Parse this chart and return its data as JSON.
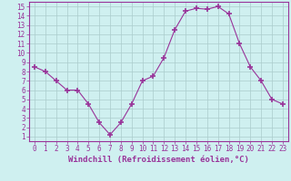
{
  "x": [
    0,
    1,
    2,
    3,
    4,
    5,
    6,
    7,
    8,
    9,
    10,
    11,
    12,
    13,
    14,
    15,
    16,
    17,
    18,
    19,
    20,
    21,
    22,
    23
  ],
  "y": [
    8.5,
    8.0,
    7.0,
    6.0,
    6.0,
    4.5,
    2.5,
    1.2,
    2.5,
    4.5,
    7.0,
    7.5,
    9.5,
    12.5,
    14.5,
    14.8,
    14.7,
    15.0,
    14.2,
    11.0,
    8.5,
    7.0,
    5.0,
    4.5
  ],
  "line_color": "#993399",
  "marker": "+",
  "marker_size": 4,
  "bg_color": "#cff0f0",
  "grid_color": "#aacccc",
  "xlabel": "Windchill (Refroidissement éolien,°C)",
  "xlabel_fontsize": 6.5,
  "yticks": [
    1,
    2,
    3,
    4,
    5,
    6,
    7,
    8,
    9,
    10,
    11,
    12,
    13,
    14,
    15
  ],
  "xticks": [
    0,
    1,
    2,
    3,
    4,
    5,
    6,
    7,
    8,
    9,
    10,
    11,
    12,
    13,
    14,
    15,
    16,
    17,
    18,
    19,
    20,
    21,
    22,
    23
  ],
  "ylim": [
    0.5,
    15.5
  ],
  "xlim": [
    -0.5,
    23.5
  ],
  "tick_fontsize": 5.5,
  "spine_color": "#993399"
}
